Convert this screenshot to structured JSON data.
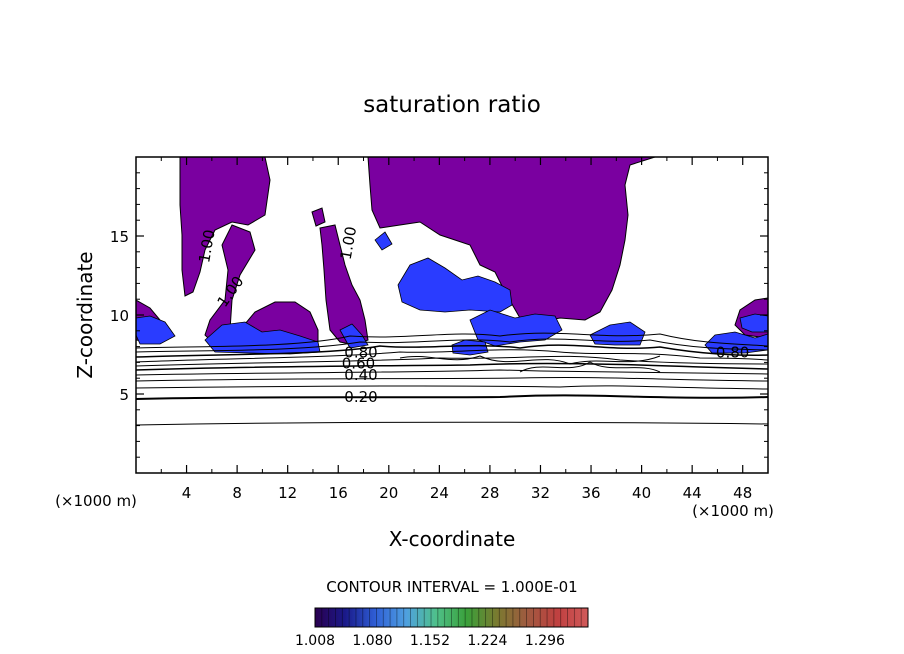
{
  "chart_data": {
    "type": "contour",
    "title": "saturation ratio",
    "xlabel": "X-coordinate",
    "ylabel": "Z-coordinate",
    "x_unit_left": "(×1000 m)",
    "x_unit_right": "(×1000 m)",
    "xlim": [
      0,
      50
    ],
    "ylim": [
      0,
      20
    ],
    "x_ticks": [
      4,
      8,
      12,
      16,
      20,
      24,
      28,
      32,
      36,
      40,
      44,
      48
    ],
    "y_ticks": [
      5,
      10,
      15
    ],
    "contour_interval_text": "CONTOUR INTERVAL = 1.000E-01",
    "contour_labels": [
      {
        "text": "1.00",
        "x": 6.0,
        "z": 14.3,
        "angle": -80
      },
      {
        "text": "1.00",
        "x": 7.8,
        "z": 11.3,
        "angle": -55
      },
      {
        "text": "1.00",
        "x": 17.2,
        "z": 14.5,
        "angle": -80
      },
      {
        "text": "0.80",
        "x": 17.8,
        "z": 7.3,
        "angle": 0
      },
      {
        "text": "0.60",
        "x": 17.6,
        "z": 6.6,
        "angle": 0
      },
      {
        "text": "0.40",
        "x": 17.8,
        "z": 5.9,
        "angle": 0
      },
      {
        "text": "0.20",
        "x": 17.8,
        "z": 4.5,
        "angle": 0
      },
      {
        "text": "0.80",
        "x": 47.2,
        "z": 7.3,
        "angle": 0
      }
    ],
    "colorbar": {
      "labels": [
        "1.008",
        "1.080",
        "1.152",
        "1.224",
        "1.296"
      ],
      "min": 1.008,
      "max": 1.35,
      "colors": [
        "#2a0050",
        "#1a1a8a",
        "#2f5fd6",
        "#4fa0e0",
        "#4fc08a",
        "#3aa03a",
        "#7a7a30",
        "#a05a40",
        "#c04040",
        "#d05a5a"
      ]
    },
    "fill_colors": {
      "supersaturated": "#7a00a0",
      "high": "#2a3cff",
      "outline": "#000000"
    },
    "background": "#ffffff",
    "grid": false
  }
}
